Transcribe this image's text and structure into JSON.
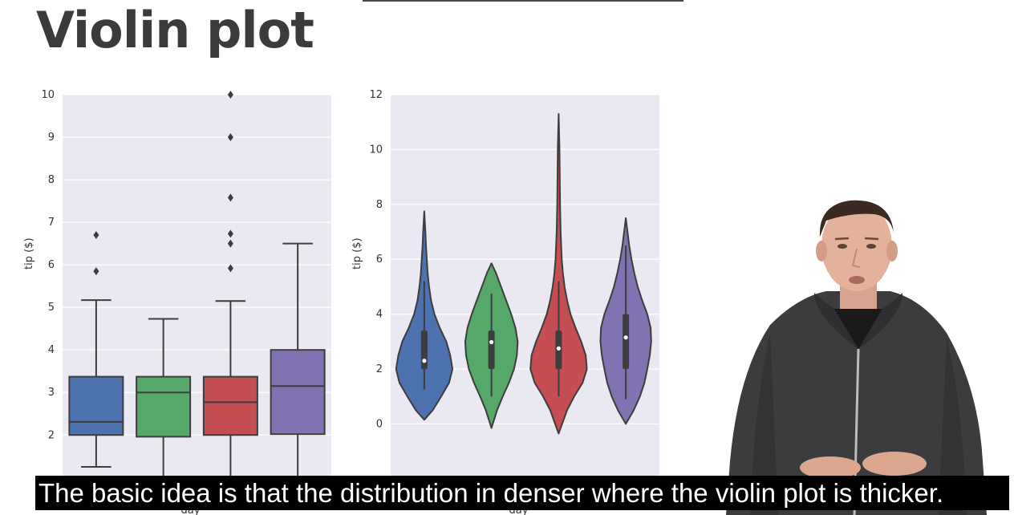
{
  "slide": {
    "title": "Violin plot"
  },
  "caption": {
    "text": "The basic idea is that the distribution in denser where the violin plot is thicker."
  },
  "colors": {
    "plot_background": "#eae9f2",
    "grid": "#ffffff",
    "series": [
      "#4c72b0",
      "#55a868",
      "#c44e52",
      "#8172b2"
    ],
    "outline": "#3d3d3d"
  },
  "chart_data": [
    {
      "type": "box",
      "ylabel": "tip ($)",
      "xlabel": "day",
      "ylim": [
        1.1,
        10
      ],
      "yticks": [
        "2",
        "3",
        "4",
        "5",
        "6",
        "7",
        "8",
        "9",
        "10"
      ],
      "grid": true,
      "series": [
        {
          "q1": 2.0,
          "median": 2.31,
          "q3": 3.37,
          "whisker_low": 1.25,
          "whisker_high": 5.17,
          "outliers": [
            5.85,
            6.7
          ]
        },
        {
          "q1": 1.96,
          "median": 3.0,
          "q3": 3.37,
          "whisker_low": 1.0,
          "whisker_high": 4.73,
          "outliers": []
        },
        {
          "q1": 2.0,
          "median": 2.77,
          "q3": 3.37,
          "whisker_low": 1.0,
          "whisker_high": 5.15,
          "outliers": [
            5.92,
            6.5,
            6.73,
            7.58,
            9.0,
            10.0
          ]
        },
        {
          "q1": 2.02,
          "median": 3.15,
          "q3": 4.0,
          "whisker_low": 1.0,
          "whisker_high": 6.5,
          "outliers": []
        }
      ]
    },
    {
      "type": "violin",
      "ylabel": "tip ($)",
      "xlabel": "day",
      "ylim": [
        -1.8,
        12
      ],
      "yticks": [
        "0",
        "2",
        "4",
        "6",
        "8",
        "10",
        "12"
      ],
      "grid": true,
      "series": [
        {
          "q1": 2.0,
          "median": 2.3,
          "q3": 3.4,
          "whisker_low": 1.25,
          "whisker_high": 5.2,
          "range": [
            0.15,
            7.75
          ],
          "profile": [
            [
              0.15,
              0
            ],
            [
              0.5,
              0.3
            ],
            [
              1.0,
              0.6
            ],
            [
              1.5,
              0.88
            ],
            [
              2.0,
              1.0
            ],
            [
              2.5,
              0.92
            ],
            [
              3.0,
              0.78
            ],
            [
              3.5,
              0.55
            ],
            [
              4.0,
              0.36
            ],
            [
              4.5,
              0.24
            ],
            [
              5.0,
              0.17
            ],
            [
              5.5,
              0.12
            ],
            [
              6.0,
              0.09
            ],
            [
              6.5,
              0.06
            ],
            [
              7.0,
              0.04
            ],
            [
              7.75,
              0
            ]
          ]
        },
        {
          "q1": 2.0,
          "median": 2.98,
          "q3": 3.4,
          "whisker_low": 1.0,
          "whisker_high": 4.75,
          "range": [
            -0.15,
            5.85
          ],
          "profile": [
            [
              -0.15,
              0
            ],
            [
              0.5,
              0.2
            ],
            [
              1.0,
              0.4
            ],
            [
              1.5,
              0.62
            ],
            [
              2.0,
              0.8
            ],
            [
              2.5,
              0.9
            ],
            [
              3.0,
              0.93
            ],
            [
              3.5,
              0.85
            ],
            [
              4.0,
              0.7
            ],
            [
              4.5,
              0.52
            ],
            [
              5.0,
              0.34
            ],
            [
              5.5,
              0.16
            ],
            [
              5.85,
              0
            ]
          ]
        },
        {
          "q1": 2.0,
          "median": 2.75,
          "q3": 3.4,
          "whisker_low": 1.0,
          "whisker_high": 5.2,
          "range": [
            -0.35,
            11.3
          ],
          "profile": [
            [
              -0.35,
              0
            ],
            [
              0.5,
              0.3
            ],
            [
              1.0,
              0.55
            ],
            [
              1.5,
              0.85
            ],
            [
              2.0,
              1.0
            ],
            [
              2.5,
              0.96
            ],
            [
              3.0,
              0.8
            ],
            [
              3.5,
              0.6
            ],
            [
              4.0,
              0.42
            ],
            [
              4.5,
              0.3
            ],
            [
              5.0,
              0.21
            ],
            [
              5.5,
              0.15
            ],
            [
              6.0,
              0.11
            ],
            [
              7.0,
              0.07
            ],
            [
              8.0,
              0.05
            ],
            [
              9.0,
              0.04
            ],
            [
              10.0,
              0.03
            ],
            [
              11.3,
              0
            ]
          ]
        },
        {
          "q1": 2.0,
          "median": 3.15,
          "q3": 4.0,
          "whisker_low": 0.9,
          "whisker_high": 6.5,
          "range": [
            0.0,
            7.5
          ],
          "profile": [
            [
              0.0,
              0
            ],
            [
              0.5,
              0.28
            ],
            [
              1.0,
              0.5
            ],
            [
              1.5,
              0.66
            ],
            [
              2.0,
              0.76
            ],
            [
              2.5,
              0.85
            ],
            [
              3.0,
              0.9
            ],
            [
              3.5,
              0.88
            ],
            [
              4.0,
              0.76
            ],
            [
              4.5,
              0.58
            ],
            [
              5.0,
              0.42
            ],
            [
              5.5,
              0.3
            ],
            [
              6.0,
              0.2
            ],
            [
              6.5,
              0.12
            ],
            [
              7.0,
              0.06
            ],
            [
              7.5,
              0
            ]
          ]
        }
      ]
    }
  ]
}
